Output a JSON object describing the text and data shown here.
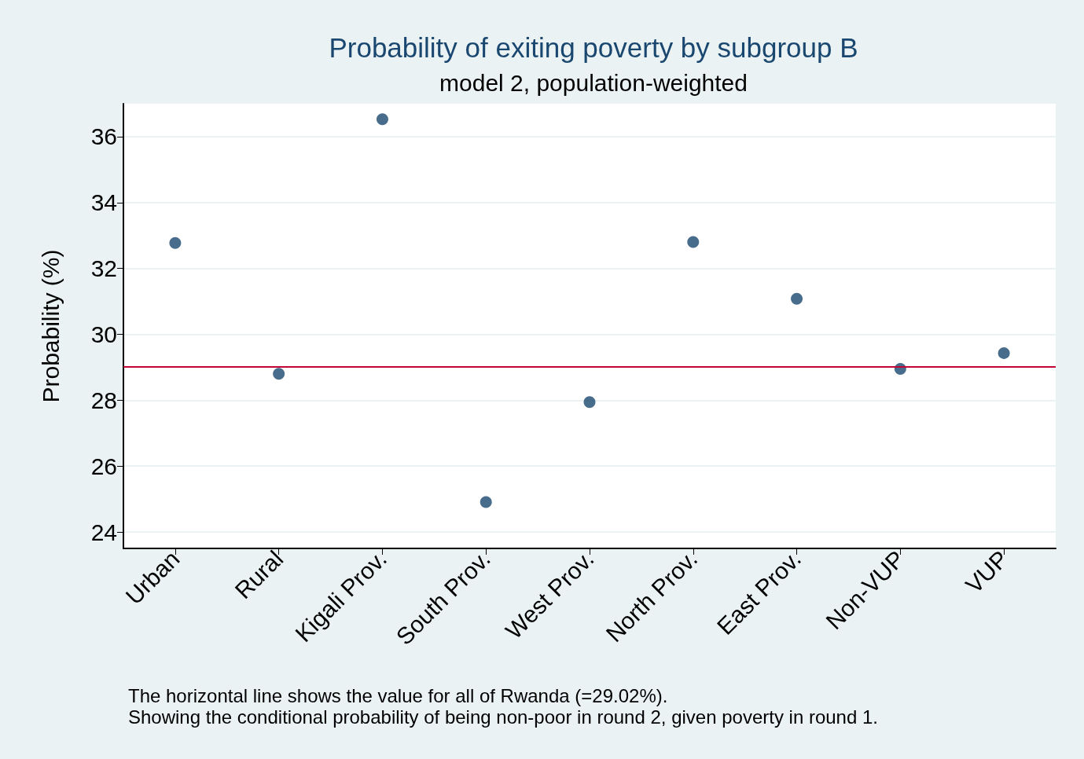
{
  "chart_data": {
    "type": "scatter",
    "title": "Probability of exiting poverty by subgroup B",
    "subtitle": "model 2, population-weighted",
    "ylabel": "Probability (%)",
    "categories": [
      "Urban",
      "Rural",
      "Kigali Prov.",
      "South Prov.",
      "West Prov.",
      "North Prov.",
      "East Prov.",
      "Non-VUP",
      "VUP"
    ],
    "values": [
      32.77,
      28.8,
      36.53,
      24.91,
      27.94,
      32.8,
      31.08,
      28.95,
      29.43
    ],
    "color": "#1a476f",
    "marker": "circle",
    "grid": "y",
    "ylim": [
      23.5,
      37
    ],
    "yticks": [
      24,
      26,
      28,
      30,
      32,
      34,
      36
    ],
    "ref_lines": [
      {
        "axis": "y",
        "value": 29.02,
        "color": "#c10534"
      }
    ],
    "annotations": [
      "The horizontal line shows the value for all of Rwanda (=29.02%).",
      "Showing the conditional probability of being non-poor in round 2, given poverty in round 1."
    ]
  }
}
